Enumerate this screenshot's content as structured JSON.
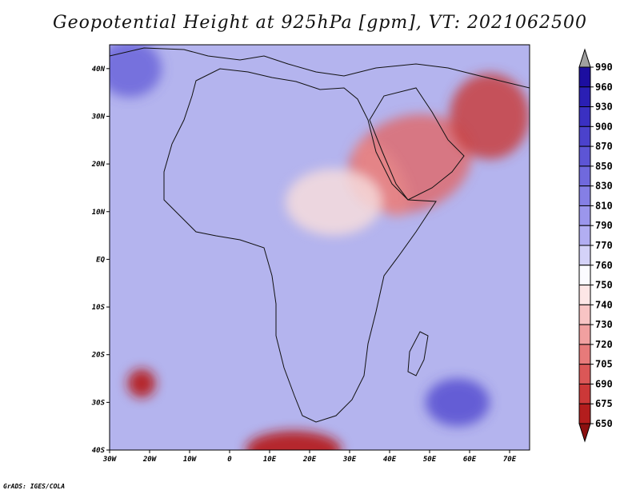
{
  "title": "Geopotential Height at 925hPa [gpm], VT: 2021062500",
  "credit": "GrADS: IGES/COLA",
  "map": {
    "lon_range": [
      -30,
      75
    ],
    "lat_range": [
      -40,
      45
    ],
    "lon_ticks": [
      {
        "value": -30,
        "label": "30W"
      },
      {
        "value": -20,
        "label": "20W"
      },
      {
        "value": -10,
        "label": "10W"
      },
      {
        "value": 0,
        "label": "0"
      },
      {
        "value": 10,
        "label": "10E"
      },
      {
        "value": 20,
        "label": "20E"
      },
      {
        "value": 30,
        "label": "30E"
      },
      {
        "value": 40,
        "label": "40E"
      },
      {
        "value": 50,
        "label": "50E"
      },
      {
        "value": 60,
        "label": "60E"
      },
      {
        "value": 70,
        "label": "70E"
      }
    ],
    "lat_ticks": [
      {
        "value": 40,
        "label": "40N"
      },
      {
        "value": 30,
        "label": "30N"
      },
      {
        "value": 20,
        "label": "20N"
      },
      {
        "value": 10,
        "label": "10N"
      },
      {
        "value": 0,
        "label": "EQ"
      },
      {
        "value": -10,
        "label": "10S"
      },
      {
        "value": -20,
        "label": "20S"
      },
      {
        "value": -30,
        "label": "30S"
      },
      {
        "value": -40,
        "label": "40S"
      }
    ],
    "background_color": "#b4b4ee"
  },
  "colorbar": {
    "labels": [
      "990",
      "960",
      "930",
      "900",
      "870",
      "850",
      "830",
      "810",
      "790",
      "770",
      "760",
      "750",
      "740",
      "730",
      "720",
      "705",
      "690",
      "675",
      "650"
    ],
    "colors": [
      "#a0a0a0",
      "#1c0ea0",
      "#2a1fb4",
      "#3a30c2",
      "#4b42cc",
      "#5d55d5",
      "#7069dd",
      "#857fe5",
      "#9b96ec",
      "#b2aef2",
      "#d4d2f8",
      "#fbfbff",
      "#fde6e6",
      "#f8c4c4",
      "#f1a0a0",
      "#e77a7a",
      "#db5757",
      "#cc3838",
      "#b31d1d",
      "#8c1010"
    ]
  },
  "field_features": [
    {
      "name": "heat-low-arabia",
      "lon": 45,
      "lat": 20,
      "rx": 16,
      "ry": 10,
      "rot": -20,
      "color": "#e06868",
      "opacity": 0.8
    },
    {
      "name": "heat-low-iran",
      "lon": 65,
      "lat": 30,
      "rx": 10,
      "ry": 9,
      "rot": 0,
      "color": "#c84040",
      "opacity": 0.85
    },
    {
      "name": "heat-low-red-sea",
      "lon": 38,
      "lat": 17,
      "rx": 5,
      "ry": 9,
      "rot": -30,
      "color": "#e98a8a",
      "opacity": 0.7
    },
    {
      "name": "sahel-trough",
      "lon": 26,
      "lat": 12,
      "rx": 12,
      "ry": 7,
      "rot": 0,
      "color": "#f6dcdc",
      "opacity": 0.85
    },
    {
      "name": "low-atlantic",
      "lon": -22,
      "lat": -26,
      "rx": 3.5,
      "ry": 3,
      "rot": 0,
      "color": "#b51a1a",
      "opacity": 0.9
    },
    {
      "name": "low-south-africa",
      "lon": 16,
      "lat": -40,
      "rx": 12,
      "ry": 4,
      "rot": 0,
      "color": "#b51a1a",
      "opacity": 0.9
    },
    {
      "name": "high-indian-ocean",
      "lon": 57,
      "lat": -30,
      "rx": 8,
      "ry": 5,
      "rot": 0,
      "color": "#4b42cc",
      "opacity": 0.75
    },
    {
      "name": "high-atlantic-north",
      "lon": -25,
      "lat": 40,
      "rx": 8,
      "ry": 6,
      "rot": 0,
      "color": "#5d55d5",
      "opacity": 0.7
    }
  ]
}
